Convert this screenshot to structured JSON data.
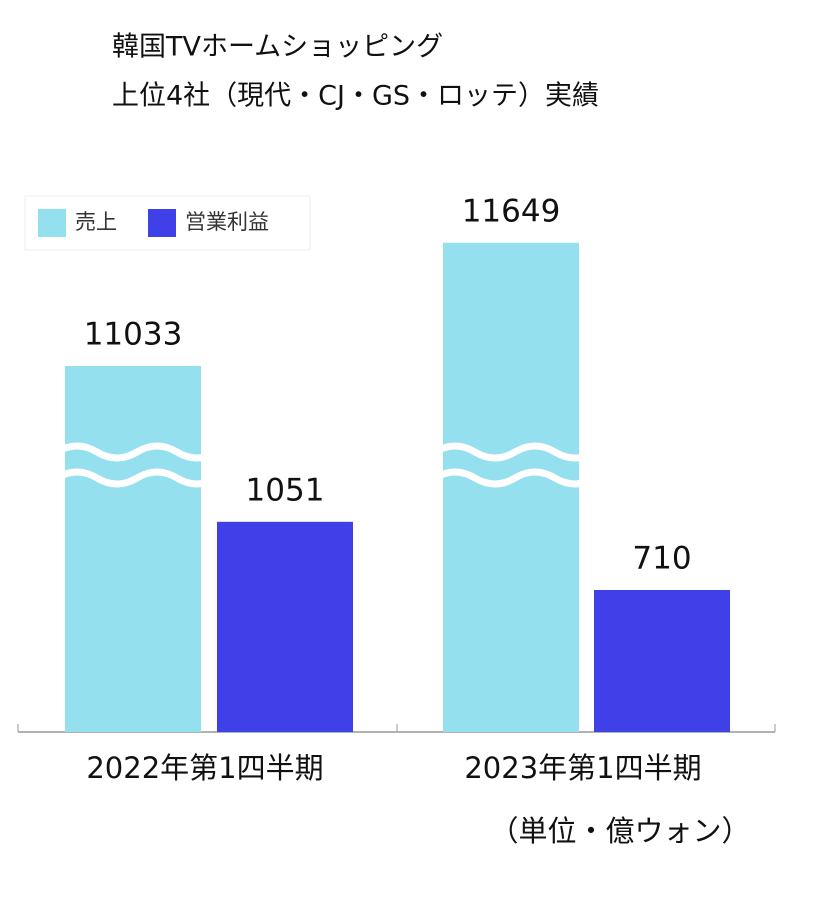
{
  "chart_data": {
    "type": "bar",
    "title": [
      "韓国TVホームショッピング",
      "上位4社（現代・CJ・GS・ロッテ）実績"
    ],
    "categories": [
      "2022年第1四半期",
      "2023年第1四半期"
    ],
    "series": [
      {
        "name": "売上",
        "color": "#94e0ef",
        "values": [
          11033,
          11649
        ]
      },
      {
        "name": "営業利益",
        "color": "#4040e8",
        "values": [
          1051,
          710
        ]
      }
    ],
    "unit_note": "（単位・億ウォン）",
    "legend": "upper left"
  }
}
